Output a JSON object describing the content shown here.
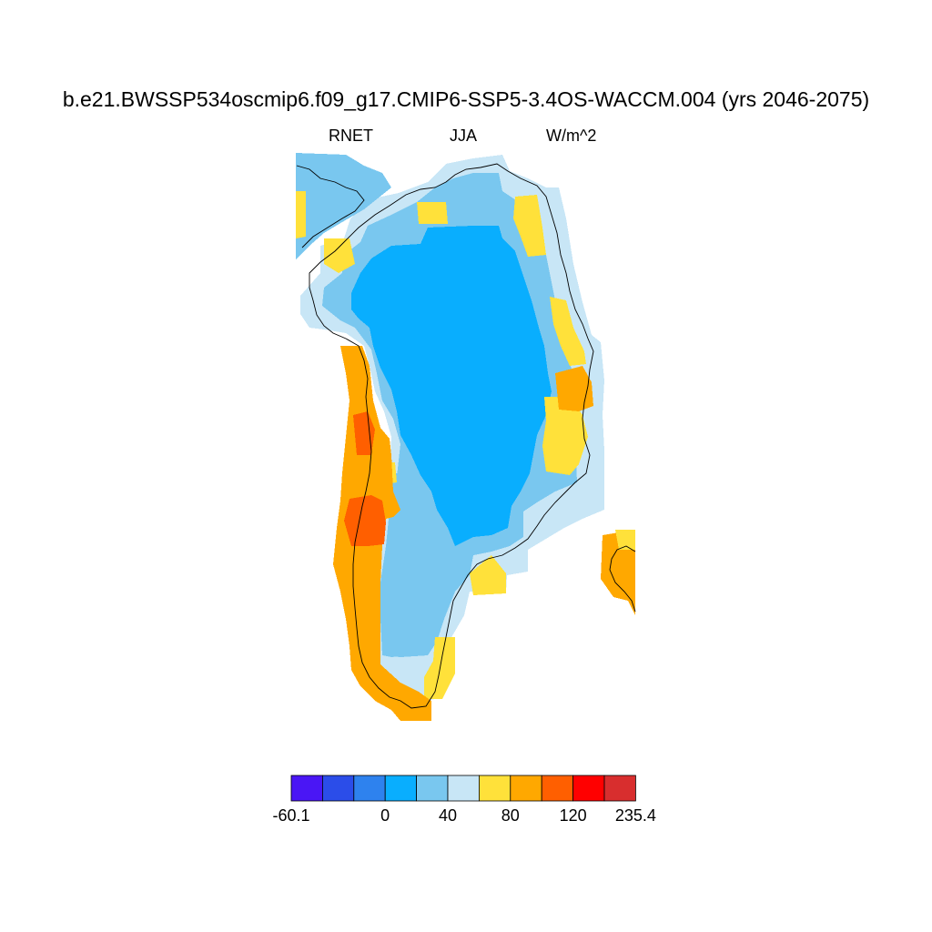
{
  "title": "b.e21.BWSSP534oscmip6.f09_g17.CMIP6-SSP5-3.4OS-WACCM.004 (yrs 2046-2075)",
  "variable": "RNET",
  "season": "JJA",
  "units": "W/m^2",
  "colorbar": {
    "colors": [
      "#4a16f5",
      "#2b4de9",
      "#2e82ee",
      "#09aefe",
      "#79c7ef",
      "#c8e6f6",
      "#ffe13a",
      "#ffa800",
      "#ff5f00",
      "#ff0000",
      "#d82e2e"
    ],
    "labels": [
      {
        "text": "-60.1",
        "index": 0
      },
      {
        "text": "0",
        "index": 3
      },
      {
        "text": "40",
        "index": 5
      },
      {
        "text": "80",
        "index": 7
      },
      {
        "text": "120",
        "index": 9
      },
      {
        "text": "235.4",
        "index": 11
      }
    ]
  },
  "map_data": {
    "region": "Greenland",
    "legend": "bottom-center",
    "zones": {
      "ice_sheet_interior": "#09aefe",
      "outer_ice_band": "#79c7ef",
      "ice_margin": "#c8e6f6",
      "southwest_ice_band": "#79c7ef",
      "coastal_yellow": "#ffe13a",
      "southwest_coast": "#ffa800",
      "southwest_hotspot": "#ff5f00",
      "east_coast_patch": "#ffa800",
      "iceland_tip": "#ffa800"
    }
  }
}
